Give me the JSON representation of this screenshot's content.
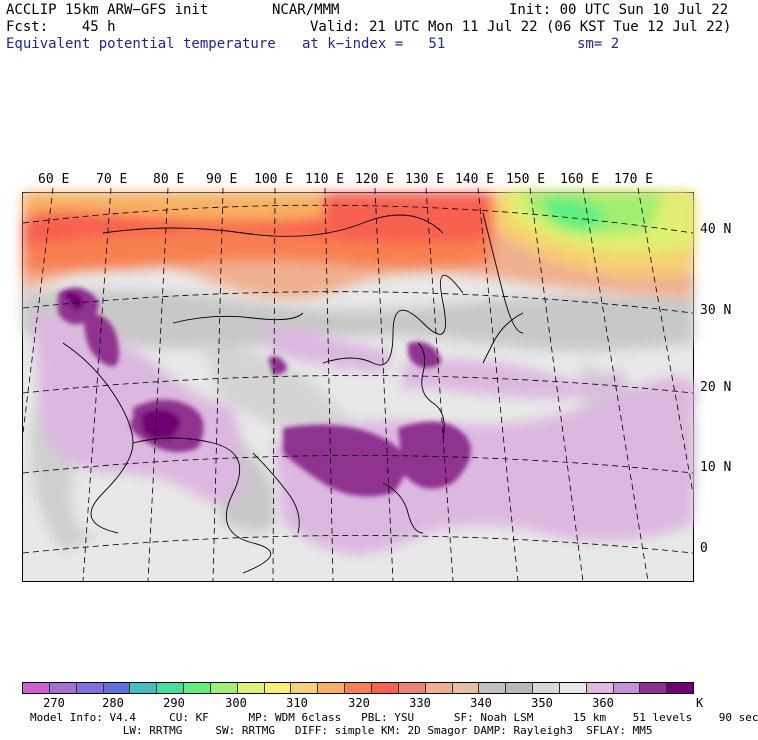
{
  "header": {
    "line1_left": "ACCLIP 15km ARW−GFS init",
    "line1_center": "NCAR/MMM",
    "line1_right": "Init: 00 UTC Sun 10 Jul 22",
    "line2_left": "Fcst:    45 h",
    "line2_right": "Valid: 21 UTC Mon 11 Jul 22 (06 KST Tue 12 Jul 22)",
    "line3_left": "Equivalent potential temperature",
    "line3_center": "at k−index =   51",
    "line3_right": "sm= 2"
  },
  "map": {
    "lon_labels": [
      "60 E",
      "70 E",
      "80 E",
      "90 E",
      "100 E",
      "110 E",
      "120 E",
      "130 E",
      "140 E",
      "150 E",
      "160 E",
      "170 E"
    ],
    "lat_labels": [
      "40 N",
      "30 N",
      "20 N",
      "10 N",
      "0"
    ]
  },
  "colorbar": {
    "colors": [
      "#d060d0",
      "#a070d8",
      "#8070e0",
      "#6070e0",
      "#40c0c0",
      "#40e0a0",
      "#60f080",
      "#a0f070",
      "#e0f070",
      "#f8f070",
      "#f8d070",
      "#f8b060",
      "#f88050",
      "#f86050",
      "#f08070",
      "#f0b090",
      "#e8c0a0",
      "#c8c0c0",
      "#b8b8b8",
      "#d8d8d8",
      "#e8e8e8",
      "#e0b8e0",
      "#c890d8",
      "#903090",
      "#700070"
    ],
    "labels": [
      "270",
      "280",
      "290",
      "300",
      "310",
      "320",
      "330",
      "340",
      "350",
      "360"
    ],
    "unit": "K"
  },
  "model_info": {
    "line1": "Model Info: V4.4     CU: KF      MP: WDM 6class   PBL: YSU      SF: Noah LSM      15 km    51 levels    90 sec",
    "line2": "              LW: RRTMG     SW: RRTMG   DIFF: simple KM: 2D Smagor DAMP: Rayleigh3  SFLAY: MM5"
  }
}
